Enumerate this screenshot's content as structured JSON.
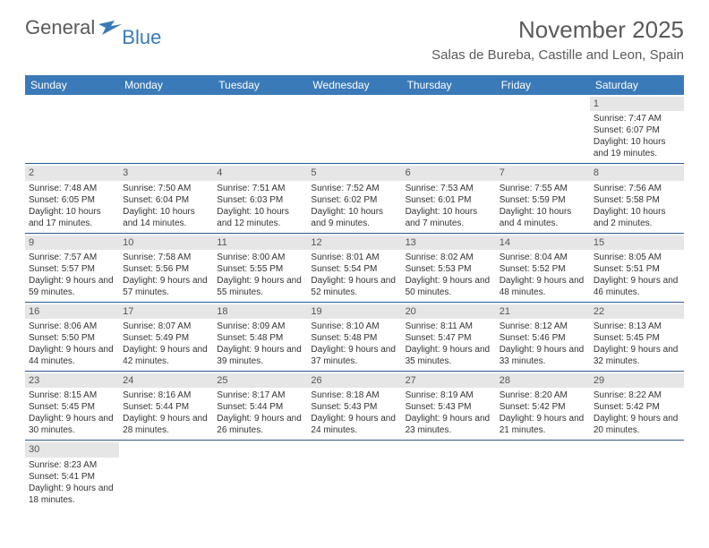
{
  "logo": {
    "general": "General",
    "blue": "Blue"
  },
  "title": "November 2025",
  "location": "Salas de Bureba, Castille and Leon, Spain",
  "colors": {
    "header_bg": "#3a7ab8",
    "header_text": "#ffffff",
    "daynum_bg": "#e6e6e6",
    "week_border": "#2d5a8e",
    "logo_gray": "#5a5a5a",
    "logo_blue": "#3a7ab8"
  },
  "weekdays": [
    "Sunday",
    "Monday",
    "Tuesday",
    "Wednesday",
    "Thursday",
    "Friday",
    "Saturday"
  ],
  "weeks": [
    [
      {
        "n": "",
        "empty": true
      },
      {
        "n": "",
        "empty": true
      },
      {
        "n": "",
        "empty": true
      },
      {
        "n": "",
        "empty": true
      },
      {
        "n": "",
        "empty": true
      },
      {
        "n": "",
        "empty": true
      },
      {
        "n": "1",
        "sr": "7:47 AM",
        "ss": "6:07 PM",
        "dl": "10 hours and 19 minutes."
      }
    ],
    [
      {
        "n": "2",
        "sr": "7:48 AM",
        "ss": "6:05 PM",
        "dl": "10 hours and 17 minutes."
      },
      {
        "n": "3",
        "sr": "7:50 AM",
        "ss": "6:04 PM",
        "dl": "10 hours and 14 minutes."
      },
      {
        "n": "4",
        "sr": "7:51 AM",
        "ss": "6:03 PM",
        "dl": "10 hours and 12 minutes."
      },
      {
        "n": "5",
        "sr": "7:52 AM",
        "ss": "6:02 PM",
        "dl": "10 hours and 9 minutes."
      },
      {
        "n": "6",
        "sr": "7:53 AM",
        "ss": "6:01 PM",
        "dl": "10 hours and 7 minutes."
      },
      {
        "n": "7",
        "sr": "7:55 AM",
        "ss": "5:59 PM",
        "dl": "10 hours and 4 minutes."
      },
      {
        "n": "8",
        "sr": "7:56 AM",
        "ss": "5:58 PM",
        "dl": "10 hours and 2 minutes."
      }
    ],
    [
      {
        "n": "9",
        "sr": "7:57 AM",
        "ss": "5:57 PM",
        "dl": "9 hours and 59 minutes."
      },
      {
        "n": "10",
        "sr": "7:58 AM",
        "ss": "5:56 PM",
        "dl": "9 hours and 57 minutes."
      },
      {
        "n": "11",
        "sr": "8:00 AM",
        "ss": "5:55 PM",
        "dl": "9 hours and 55 minutes."
      },
      {
        "n": "12",
        "sr": "8:01 AM",
        "ss": "5:54 PM",
        "dl": "9 hours and 52 minutes."
      },
      {
        "n": "13",
        "sr": "8:02 AM",
        "ss": "5:53 PM",
        "dl": "9 hours and 50 minutes."
      },
      {
        "n": "14",
        "sr": "8:04 AM",
        "ss": "5:52 PM",
        "dl": "9 hours and 48 minutes."
      },
      {
        "n": "15",
        "sr": "8:05 AM",
        "ss": "5:51 PM",
        "dl": "9 hours and 46 minutes."
      }
    ],
    [
      {
        "n": "16",
        "sr": "8:06 AM",
        "ss": "5:50 PM",
        "dl": "9 hours and 44 minutes."
      },
      {
        "n": "17",
        "sr": "8:07 AM",
        "ss": "5:49 PM",
        "dl": "9 hours and 42 minutes."
      },
      {
        "n": "18",
        "sr": "8:09 AM",
        "ss": "5:48 PM",
        "dl": "9 hours and 39 minutes."
      },
      {
        "n": "19",
        "sr": "8:10 AM",
        "ss": "5:48 PM",
        "dl": "9 hours and 37 minutes."
      },
      {
        "n": "20",
        "sr": "8:11 AM",
        "ss": "5:47 PM",
        "dl": "9 hours and 35 minutes."
      },
      {
        "n": "21",
        "sr": "8:12 AM",
        "ss": "5:46 PM",
        "dl": "9 hours and 33 minutes."
      },
      {
        "n": "22",
        "sr": "8:13 AM",
        "ss": "5:45 PM",
        "dl": "9 hours and 32 minutes."
      }
    ],
    [
      {
        "n": "23",
        "sr": "8:15 AM",
        "ss": "5:45 PM",
        "dl": "9 hours and 30 minutes."
      },
      {
        "n": "24",
        "sr": "8:16 AM",
        "ss": "5:44 PM",
        "dl": "9 hours and 28 minutes."
      },
      {
        "n": "25",
        "sr": "8:17 AM",
        "ss": "5:44 PM",
        "dl": "9 hours and 26 minutes."
      },
      {
        "n": "26",
        "sr": "8:18 AM",
        "ss": "5:43 PM",
        "dl": "9 hours and 24 minutes."
      },
      {
        "n": "27",
        "sr": "8:19 AM",
        "ss": "5:43 PM",
        "dl": "9 hours and 23 minutes."
      },
      {
        "n": "28",
        "sr": "8:20 AM",
        "ss": "5:42 PM",
        "dl": "9 hours and 21 minutes."
      },
      {
        "n": "29",
        "sr": "8:22 AM",
        "ss": "5:42 PM",
        "dl": "9 hours and 20 minutes."
      }
    ],
    [
      {
        "n": "30",
        "sr": "8:23 AM",
        "ss": "5:41 PM",
        "dl": "9 hours and 18 minutes."
      },
      {
        "n": "",
        "empty": true
      },
      {
        "n": "",
        "empty": true
      },
      {
        "n": "",
        "empty": true
      },
      {
        "n": "",
        "empty": true
      },
      {
        "n": "",
        "empty": true
      },
      {
        "n": "",
        "empty": true
      }
    ]
  ],
  "labels": {
    "sunrise": "Sunrise:",
    "sunset": "Sunset:",
    "daylight": "Daylight:"
  }
}
